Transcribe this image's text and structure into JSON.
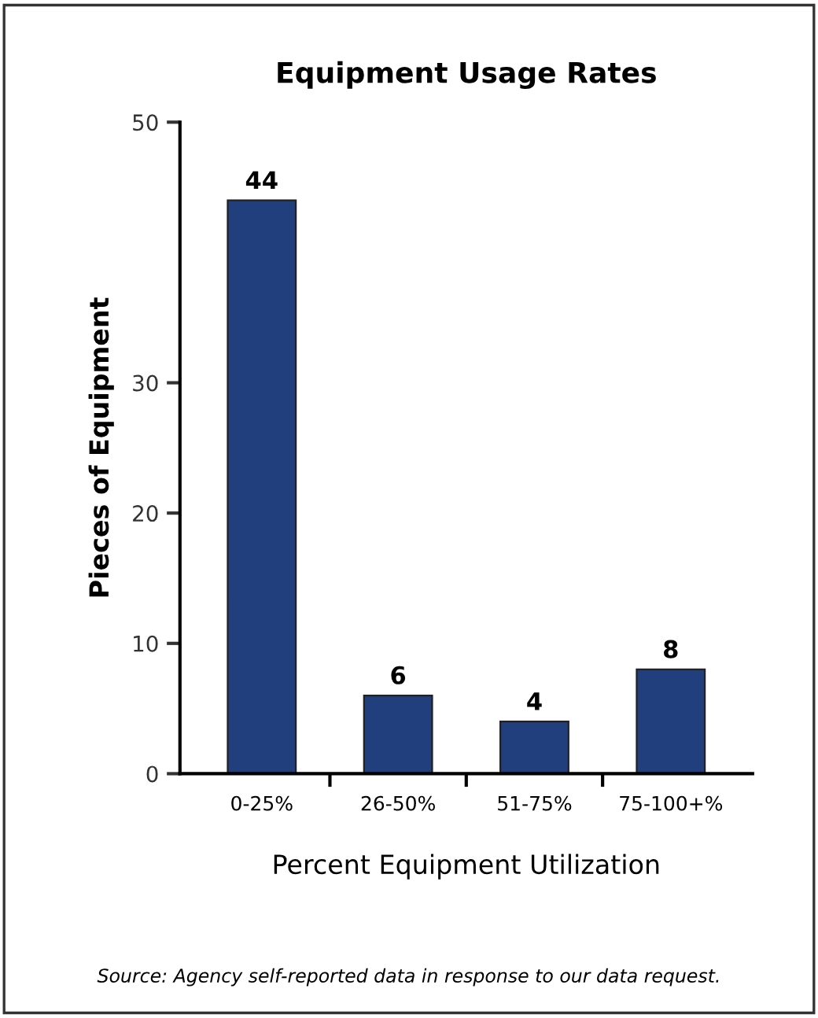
{
  "chart_data": {
    "type": "bar",
    "title": "Equipment Usage Rates",
    "xlabel": "Percent Equipment Utilization",
    "ylabel": "Pieces of Equipment",
    "categories": [
      "0-25%",
      "26-50%",
      "51-75%",
      "75-100+%"
    ],
    "values": [
      44,
      6,
      4,
      8
    ],
    "color": "#213f7c",
    "ylim": [
      0,
      50
    ],
    "yticks": [
      0,
      10,
      20,
      30,
      50
    ],
    "grid": false,
    "data_labels": true,
    "annotations": [
      "Source: Agency self-reported data in response to our data request."
    ]
  }
}
